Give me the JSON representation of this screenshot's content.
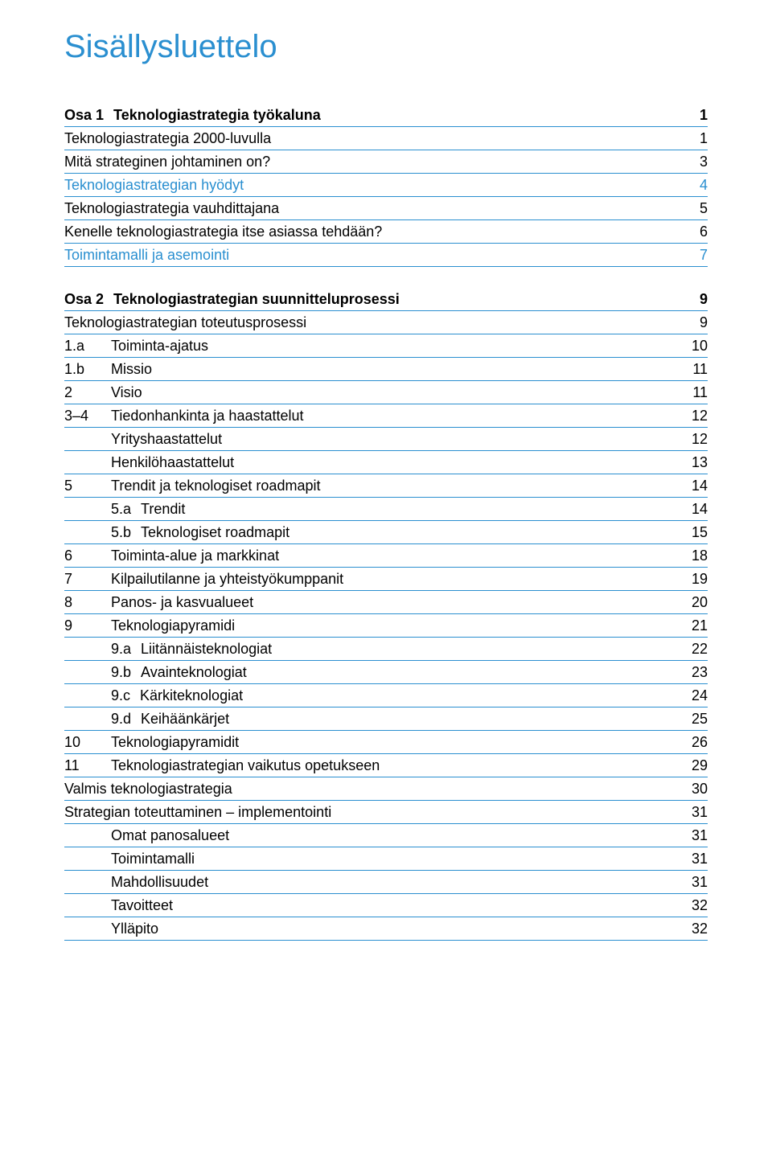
{
  "title": "Sisällysluettelo",
  "colors": {
    "accent": "#2a8fd0",
    "text": "#000000",
    "rule": "#2a8fd0",
    "background": "#ffffff"
  },
  "typography": {
    "title_fontsize": 40,
    "body_fontsize": 18,
    "font_family": "Arial"
  },
  "rows": [
    {
      "num": "Osa 1",
      "label": "Teknologiastrategia työkaluna",
      "page": "1",
      "style": "section-head first-section"
    },
    {
      "num": "",
      "label": "Teknologiastrategia 2000-luvulla",
      "page": "1",
      "style": "regular"
    },
    {
      "num": "",
      "label": "Mitä strateginen johtaminen on?",
      "page": "3",
      "style": "regular"
    },
    {
      "num": "",
      "label": "Teknologiastrategian hyödyt",
      "page": "4",
      "style": "regular blue-link"
    },
    {
      "num": "",
      "label": "Teknologiastrategia vauhdittajana",
      "page": "5",
      "style": "regular"
    },
    {
      "num": "",
      "label": "Kenelle teknologiastrategia itse asiassa tehdään?",
      "page": "6",
      "style": "regular"
    },
    {
      "num": "",
      "label": "Toimintamalli ja asemointi",
      "page": "7",
      "style": "regular blue-link"
    },
    {
      "num": "Osa 2",
      "label": "Teknologiastrategian suunnitteluprosessi",
      "page": "9",
      "style": "section-head"
    },
    {
      "num": "",
      "label": "Teknologiastrategian toteutusprosessi",
      "page": "9",
      "style": "regular"
    },
    {
      "num": "1.a",
      "label": "Toiminta-ajatus",
      "page": "10",
      "style": "regular",
      "numclass": "indent-num"
    },
    {
      "num": "1.b",
      "label": "Missio",
      "page": "11",
      "style": "regular",
      "numclass": "indent-num"
    },
    {
      "num": "2",
      "label": "Visio",
      "page": "11",
      "style": "regular",
      "numclass": "indent-num"
    },
    {
      "num": "3–4",
      "label": "Tiedonhankinta ja haastattelut",
      "page": "12",
      "style": "regular",
      "numclass": "indent-num"
    },
    {
      "num": "",
      "label": "Yrityshaastattelut",
      "page": "12",
      "style": "regular indent-deep"
    },
    {
      "num": "",
      "label": "Henkilöhaastattelut",
      "page": "13",
      "style": "regular indent-deep"
    },
    {
      "num": "5",
      "label": "Trendit ja teknologiset roadmapit",
      "page": "14",
      "style": "regular",
      "numclass": "indent-num"
    },
    {
      "num": "5.a",
      "label": "Trendit",
      "page": "14",
      "style": "regular indent-sub"
    },
    {
      "num": "5.b",
      "label": "Teknologiset roadmapit",
      "page": "15",
      "style": "regular indent-sub"
    },
    {
      "num": "6",
      "label": "Toiminta-alue ja markkinat",
      "page": "18",
      "style": "regular",
      "numclass": "indent-num"
    },
    {
      "num": "7",
      "label": "Kilpailutilanne ja yhteistyökumppanit",
      "page": "19",
      "style": "regular",
      "numclass": "indent-num"
    },
    {
      "num": "8",
      "label": "Panos- ja kasvualueet",
      "page": "20",
      "style": "regular",
      "numclass": "indent-num"
    },
    {
      "num": "9",
      "label": "Teknologiapyramidi",
      "page": "21",
      "style": "regular",
      "numclass": "indent-num"
    },
    {
      "num": "9.a",
      "label": "Liitännäisteknologiat",
      "page": "22",
      "style": "regular indent-sub"
    },
    {
      "num": "9.b",
      "label": "Avainteknologiat",
      "page": "23",
      "style": "regular indent-sub"
    },
    {
      "num": "9.c",
      "label": "Kärkiteknologiat",
      "page": "24",
      "style": "regular indent-sub"
    },
    {
      "num": "9.d",
      "label": "Keihäänkärjet",
      "page": "25",
      "style": "regular indent-sub"
    },
    {
      "num": "10",
      "label": "Teknologiapyramidit",
      "page": "26",
      "style": "regular",
      "numclass": "indent-num"
    },
    {
      "num": "11",
      "label": "Teknologiastrategian vaikutus opetukseen",
      "page": "29",
      "style": "regular",
      "numclass": "indent-num"
    },
    {
      "num": "",
      "label": "Valmis teknologiastrategia",
      "page": "30",
      "style": "regular"
    },
    {
      "num": "",
      "label": "Strategian toteuttaminen – implementointi",
      "page": "31",
      "style": "regular"
    },
    {
      "num": "",
      "label": "Omat panosalueet",
      "page": "31",
      "style": "regular indent-deep"
    },
    {
      "num": "",
      "label": "Toimintamalli",
      "page": "31",
      "style": "regular indent-deep"
    },
    {
      "num": "",
      "label": "Mahdollisuudet",
      "page": "31",
      "style": "regular indent-deep"
    },
    {
      "num": "",
      "label": "Tavoitteet",
      "page": "32",
      "style": "regular indent-deep"
    },
    {
      "num": "",
      "label": "Ylläpito",
      "page": "32",
      "style": "regular indent-deep"
    }
  ]
}
